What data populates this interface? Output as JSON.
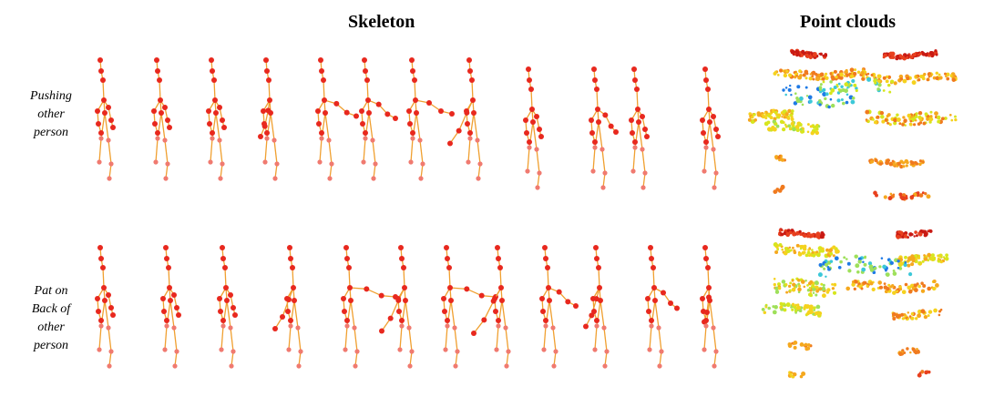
{
  "headings": {
    "skeleton": "Skeleton",
    "point_clouds": "Point clouds"
  },
  "rows": [
    {
      "label_lines": [
        "Pushing",
        "other",
        "person"
      ]
    },
    {
      "label_lines": [
        "Pat on",
        "Back of",
        "other",
        "person"
      ]
    }
  ],
  "colors": {
    "bone": "#f0a030",
    "joint": "#e8281e",
    "joint_light": "#f07a70"
  }
}
